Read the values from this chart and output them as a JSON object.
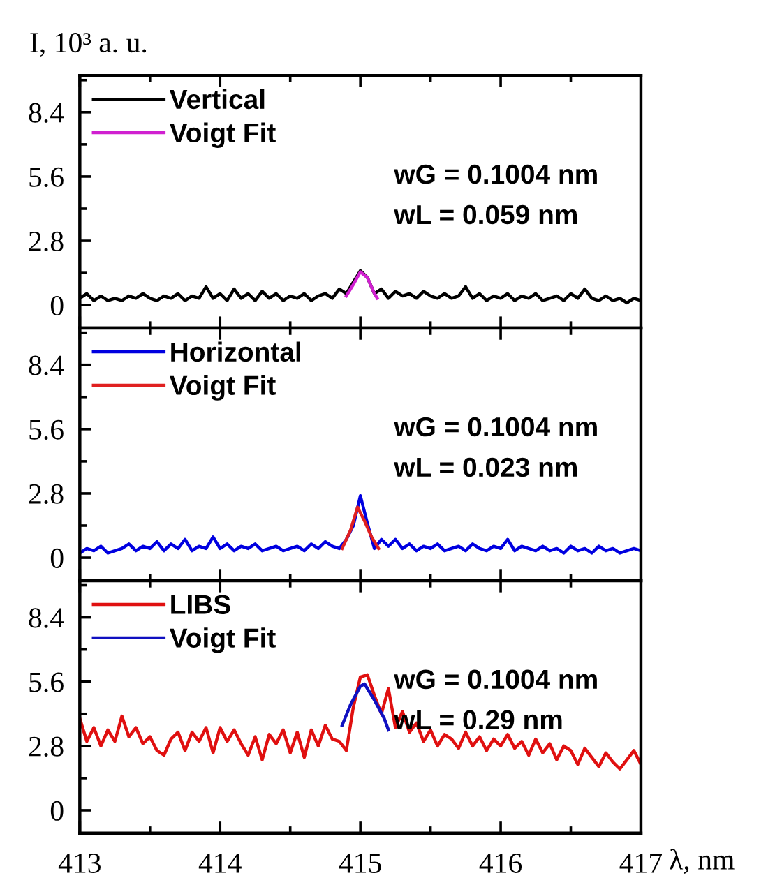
{
  "chart_data": [
    {
      "type": "line",
      "ylabel": "I, 10³ a. u.",
      "xlim": [
        413,
        417
      ],
      "ylim": [
        -1,
        10
      ],
      "yticks": [
        0,
        2.8,
        5.6,
        8.4
      ],
      "xticks": [
        413,
        414,
        415,
        416,
        417
      ],
      "tick_labels": "y",
      "legend": "top left",
      "grid": false,
      "x": [
        413.0,
        413.05,
        413.1,
        413.15,
        413.2,
        413.25,
        413.3,
        413.35,
        413.4,
        413.45,
        413.5,
        413.55,
        413.6,
        413.65,
        413.7,
        413.75,
        413.8,
        413.85,
        413.9,
        413.95,
        414.0,
        414.05,
        414.1,
        414.15,
        414.2,
        414.25,
        414.3,
        414.35,
        414.4,
        414.45,
        414.5,
        414.55,
        414.6,
        414.65,
        414.7,
        414.75,
        414.8,
        414.85,
        414.9,
        414.95,
        415.0,
        415.05,
        415.1,
        415.15,
        415.2,
        415.25,
        415.3,
        415.35,
        415.4,
        415.45,
        415.5,
        415.55,
        415.6,
        415.65,
        415.7,
        415.75,
        415.8,
        415.85,
        415.9,
        415.95,
        416.0,
        416.05,
        416.1,
        416.15,
        416.2,
        416.25,
        416.3,
        416.35,
        416.4,
        416.45,
        416.5,
        416.55,
        416.6,
        416.65,
        416.7,
        416.75,
        416.8,
        416.85,
        416.9,
        416.95,
        417.0
      ],
      "series": [
        {
          "name": "Vertical",
          "color": "#000000",
          "values": [
            0.3,
            0.5,
            0.2,
            0.4,
            0.2,
            0.3,
            0.2,
            0.4,
            0.3,
            0.5,
            0.3,
            0.2,
            0.4,
            0.3,
            0.5,
            0.2,
            0.4,
            0.3,
            0.8,
            0.3,
            0.5,
            0.2,
            0.7,
            0.3,
            0.5,
            0.2,
            0.6,
            0.3,
            0.5,
            0.2,
            0.4,
            0.3,
            0.5,
            0.2,
            0.4,
            0.5,
            0.3,
            0.7,
            0.5,
            1.0,
            1.5,
            1.2,
            0.5,
            0.7,
            0.3,
            0.6,
            0.4,
            0.5,
            0.3,
            0.6,
            0.4,
            0.3,
            0.5,
            0.3,
            0.4,
            0.8,
            0.3,
            0.5,
            0.2,
            0.4,
            0.3,
            0.5,
            0.2,
            0.4,
            0.3,
            0.5,
            0.2,
            0.3,
            0.4,
            0.2,
            0.5,
            0.3,
            0.7,
            0.3,
            0.2,
            0.4,
            0.2,
            0.3,
            0.1,
            0.3,
            0.2
          ]
        },
        {
          "name": "Voigt Fit",
          "color": "#d020d0",
          "x": [
            414.9,
            414.95,
            415.0,
            415.05,
            415.1,
            415.12
          ],
          "values": [
            0.4,
            0.9,
            1.45,
            1.2,
            0.5,
            0.3
          ]
        }
      ],
      "annotations": [
        "wG = 0.1004 nm",
        "wL = 0.059 nm"
      ]
    },
    {
      "type": "line",
      "xlim": [
        413,
        417
      ],
      "ylim": [
        -1,
        10
      ],
      "yticks": [
        0,
        2.8,
        5.6,
        8.4
      ],
      "xticks": [
        413,
        414,
        415,
        416,
        417
      ],
      "tick_labels": "y",
      "legend": "top left",
      "grid": false,
      "x": [
        413.0,
        413.05,
        413.1,
        413.15,
        413.2,
        413.25,
        413.3,
        413.35,
        413.4,
        413.45,
        413.5,
        413.55,
        413.6,
        413.65,
        413.7,
        413.75,
        413.8,
        413.85,
        413.9,
        413.95,
        414.0,
        414.05,
        414.1,
        414.15,
        414.2,
        414.25,
        414.3,
        414.35,
        414.4,
        414.45,
        414.5,
        414.55,
        414.6,
        414.65,
        414.7,
        414.75,
        414.8,
        414.85,
        414.9,
        414.95,
        415.0,
        415.05,
        415.1,
        415.15,
        415.2,
        415.25,
        415.3,
        415.35,
        415.4,
        415.45,
        415.5,
        415.55,
        415.6,
        415.65,
        415.7,
        415.75,
        415.8,
        415.85,
        415.9,
        415.95,
        416.0,
        416.05,
        416.1,
        416.15,
        416.2,
        416.25,
        416.3,
        416.35,
        416.4,
        416.45,
        416.5,
        416.55,
        416.6,
        416.65,
        416.7,
        416.75,
        416.8,
        416.85,
        416.9,
        416.95,
        417.0
      ],
      "series": [
        {
          "name": "Horizontal",
          "color": "#0000e0",
          "values": [
            0.2,
            0.4,
            0.3,
            0.5,
            0.2,
            0.3,
            0.4,
            0.6,
            0.3,
            0.5,
            0.4,
            0.7,
            0.3,
            0.6,
            0.4,
            0.8,
            0.3,
            0.5,
            0.4,
            0.9,
            0.4,
            0.6,
            0.3,
            0.5,
            0.4,
            0.6,
            0.3,
            0.4,
            0.5,
            0.3,
            0.4,
            0.5,
            0.3,
            0.6,
            0.4,
            0.7,
            0.5,
            0.4,
            0.8,
            1.4,
            2.7,
            1.5,
            0.4,
            0.8,
            0.5,
            0.8,
            0.4,
            0.6,
            0.3,
            0.5,
            0.4,
            0.6,
            0.3,
            0.4,
            0.5,
            0.3,
            0.6,
            0.4,
            0.3,
            0.5,
            0.4,
            0.8,
            0.3,
            0.5,
            0.4,
            0.3,
            0.5,
            0.3,
            0.4,
            0.2,
            0.5,
            0.3,
            0.4,
            0.2,
            0.5,
            0.3,
            0.4,
            0.2,
            0.3,
            0.4,
            0.3
          ]
        },
        {
          "name": "Voigt Fit",
          "color": "#e02020",
          "x": [
            414.87,
            414.93,
            414.98,
            415.03,
            415.08,
            415.13
          ],
          "values": [
            0.4,
            1.2,
            2.2,
            1.6,
            0.9,
            0.4
          ]
        }
      ],
      "annotations": [
        "wG = 0.1004 nm",
        "wL = 0.023 nm"
      ]
    },
    {
      "type": "line",
      "xlabel": "λ, nm",
      "xlim": [
        413,
        417
      ],
      "ylim": [
        -1,
        10
      ],
      "yticks": [
        0,
        2.8,
        5.6,
        8.4
      ],
      "xticks": [
        413,
        414,
        415,
        416,
        417
      ],
      "legend": "top left",
      "grid": false,
      "x": [
        413.0,
        413.05,
        413.1,
        413.15,
        413.2,
        413.25,
        413.3,
        413.35,
        413.4,
        413.45,
        413.5,
        413.55,
        413.6,
        413.65,
        413.7,
        413.75,
        413.8,
        413.85,
        413.9,
        413.95,
        414.0,
        414.05,
        414.1,
        414.15,
        414.2,
        414.25,
        414.3,
        414.35,
        414.4,
        414.45,
        414.5,
        414.55,
        414.6,
        414.65,
        414.7,
        414.75,
        414.8,
        414.85,
        414.9,
        414.95,
        415.0,
        415.05,
        415.1,
        415.15,
        415.2,
        415.25,
        415.3,
        415.35,
        415.4,
        415.45,
        415.5,
        415.55,
        415.6,
        415.65,
        415.7,
        415.75,
        415.8,
        415.85,
        415.9,
        415.95,
        416.0,
        416.05,
        416.1,
        416.15,
        416.2,
        416.25,
        416.3,
        416.35,
        416.4,
        416.45,
        416.5,
        416.55,
        416.6,
        416.65,
        416.7,
        416.75,
        416.8,
        416.85,
        416.9,
        416.95,
        417.0
      ],
      "series": [
        {
          "name": "LIBS",
          "color": "#e01010",
          "values": [
            4.0,
            3.0,
            3.6,
            2.8,
            3.5,
            3.0,
            4.1,
            3.2,
            3.6,
            2.9,
            3.2,
            2.6,
            2.4,
            3.1,
            3.4,
            2.6,
            3.4,
            3.0,
            3.6,
            2.5,
            3.6,
            3.0,
            3.5,
            2.9,
            2.4,
            3.2,
            2.2,
            3.3,
            2.9,
            3.5,
            2.5,
            3.4,
            2.3,
            3.5,
            2.8,
            3.7,
            3.1,
            3.0,
            2.6,
            4.5,
            5.8,
            5.9,
            5.0,
            4.2,
            5.3,
            3.6,
            4.3,
            3.4,
            3.8,
            3.0,
            3.5,
            2.8,
            3.3,
            3.1,
            2.7,
            3.4,
            2.8,
            3.2,
            2.6,
            3.1,
            2.8,
            3.3,
            2.7,
            3.0,
            2.4,
            3.1,
            2.5,
            2.9,
            2.2,
            2.8,
            2.6,
            2.0,
            2.7,
            2.3,
            1.9,
            2.5,
            2.1,
            1.8,
            2.2,
            2.6,
            2.0
          ]
        },
        {
          "name": "Voigt Fit",
          "color": "#1010c0",
          "x": [
            414.87,
            414.93,
            415.0,
            415.03,
            415.1,
            415.17,
            415.2
          ],
          "values": [
            3.7,
            4.6,
            5.4,
            5.5,
            4.8,
            4.0,
            3.5
          ]
        }
      ],
      "annotations": [
        "wG = 0.1004 nm",
        "wL = 0.29 nm"
      ]
    }
  ]
}
